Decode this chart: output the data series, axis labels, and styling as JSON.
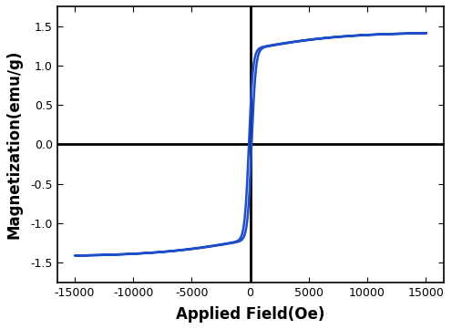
{
  "xlabel": "Applied Field(Oe)",
  "ylabel": "Magnetization(emu/g)",
  "xlim": [
    -16500,
    16500
  ],
  "ylim": [
    -1.75,
    1.75
  ],
  "xticks": [
    -15000,
    -10000,
    -5000,
    0,
    5000,
    10000,
    15000
  ],
  "yticks": [
    -1.5,
    -1.0,
    -0.5,
    0.0,
    0.5,
    1.0,
    1.5
  ],
  "line_color": "#1f4fc8",
  "line_width": 1.8,
  "Ms": 1.42,
  "Hc": 120,
  "a_steep": 350,
  "a_slow": 8000,
  "figsize": [
    4.96,
    3.61
  ],
  "dpi": 100,
  "spine_linewidth": 1.2,
  "cross_linewidth": 2.0,
  "xlabel_fontsize": 12,
  "ylabel_fontsize": 12,
  "tick_fontsize": 9
}
